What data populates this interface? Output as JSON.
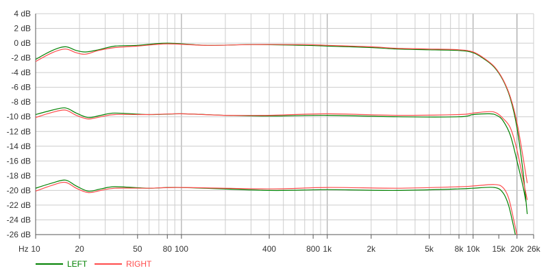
{
  "chart_data": {
    "type": "line",
    "x_scale": "log",
    "x_unit": "Hz",
    "xlim": [
      10,
      26000
    ],
    "ylim": [
      -26,
      4
    ],
    "grid": true,
    "legend_position": "bottom-left",
    "x_ticks": [
      {
        "value": 10,
        "label": "10"
      },
      {
        "value": 20,
        "label": "20"
      },
      {
        "value": 50,
        "label": "50"
      },
      {
        "value": 80,
        "label": "80"
      },
      {
        "value": 100,
        "label": "100"
      },
      {
        "value": 400,
        "label": "400"
      },
      {
        "value": 800,
        "label": "800"
      },
      {
        "value": 1000,
        "label": "1k"
      },
      {
        "value": 2000,
        "label": "2k"
      },
      {
        "value": 5000,
        "label": "5k"
      },
      {
        "value": 8000,
        "label": "8k"
      },
      {
        "value": 10000,
        "label": "10k"
      },
      {
        "value": 15000,
        "label": "15k"
      },
      {
        "value": 20000,
        "label": "20k"
      },
      {
        "value": 26000,
        "label": "26k"
      }
    ],
    "y_ticks": [
      {
        "value": 4,
        "label": "4 dB"
      },
      {
        "value": 2,
        "label": "2 dB"
      },
      {
        "value": 0,
        "label": "0 dB"
      },
      {
        "value": -2,
        "label": "-2 dB"
      },
      {
        "value": -4,
        "label": "-4 dB"
      },
      {
        "value": -6,
        "label": "-6 dB"
      },
      {
        "value": -8,
        "label": "-8 dB"
      },
      {
        "value": -10,
        "label": "-10 dB"
      },
      {
        "value": -12,
        "label": "-12 dB"
      },
      {
        "value": -14,
        "label": "-14 dB"
      },
      {
        "value": -16,
        "label": "-16 dB"
      },
      {
        "value": -18,
        "label": "-18 dB"
      },
      {
        "value": -20,
        "label": "-20 dB"
      },
      {
        "value": -22,
        "label": "-22 dB"
      },
      {
        "value": -24,
        "label": "-24 dB"
      },
      {
        "value": -26,
        "label": "-26 dB"
      }
    ],
    "series": [
      {
        "name": "LEFT",
        "color": "#008000",
        "curves": [
          [
            [
              10,
              -2.2
            ],
            [
              13,
              -1.0
            ],
            [
              16,
              -0.5
            ],
            [
              19,
              -1.0
            ],
            [
              22,
              -1.2
            ],
            [
              27,
              -0.9
            ],
            [
              35,
              -0.4
            ],
            [
              50,
              -0.3
            ],
            [
              80,
              0.0
            ],
            [
              150,
              -0.3
            ],
            [
              300,
              -0.2
            ],
            [
              700,
              -0.3
            ],
            [
              1000,
              -0.4
            ],
            [
              2000,
              -0.6
            ],
            [
              3000,
              -0.8
            ],
            [
              5000,
              -0.9
            ],
            [
              8000,
              -1.0
            ],
            [
              10000,
              -1.3
            ],
            [
              12000,
              -2.2
            ],
            [
              14000,
              -3.3
            ],
            [
              16000,
              -5.0
            ],
            [
              18000,
              -7.5
            ],
            [
              20000,
              -11.5
            ],
            [
              22000,
              -17.5
            ],
            [
              23500,
              -23.2
            ]
          ],
          [
            [
              10,
              -9.7
            ],
            [
              13,
              -9.1
            ],
            [
              16,
              -8.8
            ],
            [
              19,
              -9.5
            ],
            [
              23,
              -10.1
            ],
            [
              28,
              -9.8
            ],
            [
              35,
              -9.5
            ],
            [
              60,
              -9.7
            ],
            [
              100,
              -9.6
            ],
            [
              200,
              -9.8
            ],
            [
              400,
              -9.9
            ],
            [
              1000,
              -9.8
            ],
            [
              3000,
              -10.0
            ],
            [
              8000,
              -10.0
            ],
            [
              10000,
              -9.7
            ],
            [
              13000,
              -9.6
            ],
            [
              14500,
              -9.8
            ],
            [
              16000,
              -10.5
            ],
            [
              18000,
              -12.5
            ],
            [
              20000,
              -16.0
            ],
            [
              22000,
              -19.5
            ],
            [
              23000,
              -21.5
            ]
          ],
          [
            [
              10,
              -19.7
            ],
            [
              13,
              -19.0
            ],
            [
              16,
              -18.6
            ],
            [
              19,
              -19.4
            ],
            [
              23,
              -20.1
            ],
            [
              28,
              -19.8
            ],
            [
              35,
              -19.5
            ],
            [
              60,
              -19.7
            ],
            [
              100,
              -19.6
            ],
            [
              400,
              -20.0
            ],
            [
              1000,
              -19.9
            ],
            [
              3000,
              -20.0
            ],
            [
              8000,
              -19.8
            ],
            [
              10000,
              -19.7
            ],
            [
              14000,
              -19.6
            ],
            [
              16000,
              -20.3
            ],
            [
              17500,
              -22.0
            ],
            [
              19000,
              -25.0
            ],
            [
              19700,
              -26.5
            ]
          ]
        ]
      },
      {
        "name": "RIGHT",
        "color": "#ff4a4a",
        "curves": [
          [
            [
              10,
              -2.5
            ],
            [
              13,
              -1.3
            ],
            [
              16,
              -0.8
            ],
            [
              19,
              -1.3
            ],
            [
              22,
              -1.5
            ],
            [
              27,
              -1.0
            ],
            [
              35,
              -0.6
            ],
            [
              50,
              -0.4
            ],
            [
              80,
              -0.1
            ],
            [
              150,
              -0.3
            ],
            [
              300,
              -0.2
            ],
            [
              700,
              -0.2
            ],
            [
              1000,
              -0.3
            ],
            [
              2000,
              -0.5
            ],
            [
              3000,
              -0.7
            ],
            [
              5000,
              -0.8
            ],
            [
              8000,
              -0.9
            ],
            [
              10000,
              -1.2
            ],
            [
              12000,
              -2.1
            ],
            [
              14000,
              -3.2
            ],
            [
              16000,
              -4.9
            ],
            [
              18000,
              -7.3
            ],
            [
              20000,
              -10.8
            ],
            [
              22000,
              -15.5
            ],
            [
              23500,
              -19.0
            ]
          ],
          [
            [
              10,
              -10.1
            ],
            [
              13,
              -9.4
            ],
            [
              16,
              -9.1
            ],
            [
              19,
              -9.8
            ],
            [
              23,
              -10.3
            ],
            [
              28,
              -10.0
            ],
            [
              35,
              -9.7
            ],
            [
              60,
              -9.7
            ],
            [
              100,
              -9.6
            ],
            [
              200,
              -9.8
            ],
            [
              400,
              -9.8
            ],
            [
              1000,
              -9.6
            ],
            [
              3000,
              -9.8
            ],
            [
              8000,
              -9.7
            ],
            [
              10000,
              -9.5
            ],
            [
              13000,
              -9.3
            ],
            [
              14500,
              -9.5
            ],
            [
              16000,
              -10.2
            ],
            [
              18000,
              -11.5
            ],
            [
              20000,
              -14.5
            ],
            [
              22000,
              -18.5
            ],
            [
              23500,
              -21.3
            ]
          ],
          [
            [
              10,
              -20.1
            ],
            [
              13,
              -19.3
            ],
            [
              16,
              -18.9
            ],
            [
              19,
              -19.7
            ],
            [
              23,
              -20.3
            ],
            [
              28,
              -20.0
            ],
            [
              35,
              -19.7
            ],
            [
              60,
              -19.7
            ],
            [
              100,
              -19.6
            ],
            [
              400,
              -19.8
            ],
            [
              1000,
              -19.6
            ],
            [
              3000,
              -19.7
            ],
            [
              8000,
              -19.5
            ],
            [
              10000,
              -19.4
            ],
            [
              14000,
              -19.2
            ],
            [
              16000,
              -19.6
            ],
            [
              17500,
              -21.0
            ],
            [
              19000,
              -24.0
            ],
            [
              20200,
              -26.5
            ]
          ]
        ]
      }
    ]
  },
  "legend": {
    "left_label": "LEFT",
    "right_label": "RIGHT"
  },
  "x_unit_label": "Hz"
}
